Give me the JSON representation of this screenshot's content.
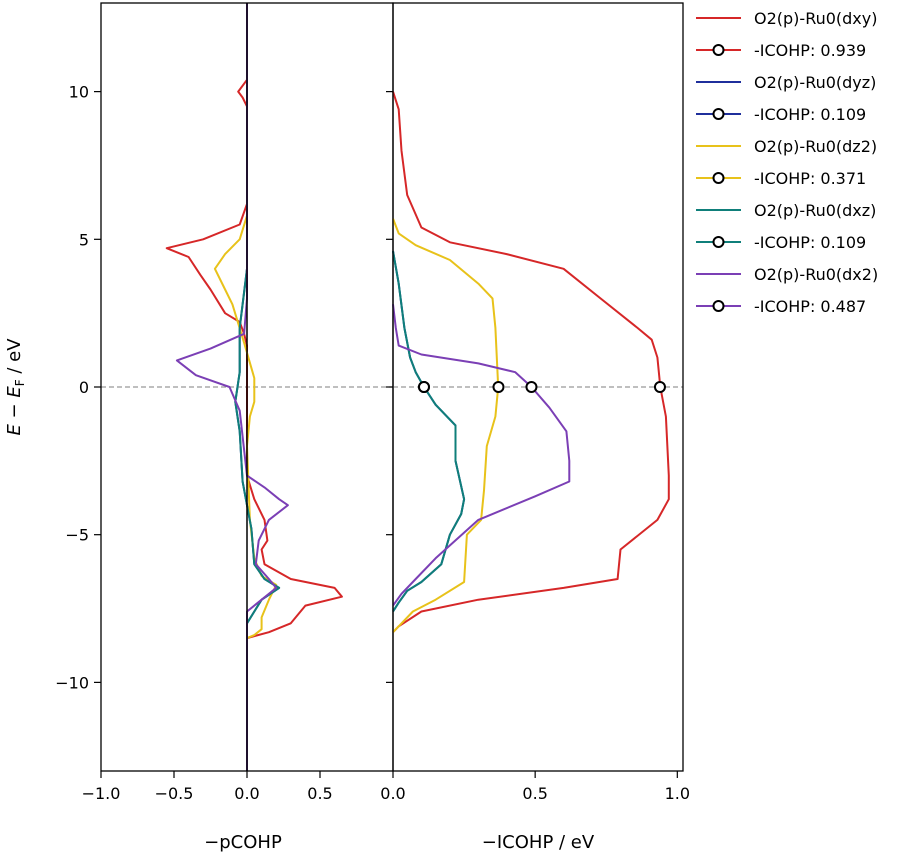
{
  "chart_data": [
    {
      "type": "line",
      "panel": "pCOHP",
      "xlabel": "−pCOHP",
      "ylabel": "E − E_F / eV",
      "ylabel_parts": {
        "e": "E",
        "minus": " − ",
        "ef": "E",
        "sub": "F",
        "unit": " / eV"
      },
      "xlim": [
        -1.0,
        1.0
      ],
      "ylim": [
        -13,
        13
      ],
      "x_ticks": [
        -1.0,
        -0.5,
        0.0,
        0.5
      ],
      "x_tick_labels": [
        "−1.0",
        "−0.5",
        "0.0",
        "0.5"
      ],
      "y_ticks": [
        10,
        5,
        0,
        -5,
        -10
      ],
      "y_tick_labels": [
        "10",
        "5",
        "0",
        "−5",
        "−10"
      ],
      "fermi_level": 0,
      "series": [
        {
          "name": "O2(p)-Ru0(dxy)",
          "color": "#d62728",
          "points": [
            [
              0,
              13
            ],
            [
              0,
              10.4
            ],
            [
              -0.06,
              10
            ],
            [
              -0.03,
              9.8
            ],
            [
              0,
              9.5
            ],
            [
              0,
              7
            ],
            [
              0,
              6.2
            ],
            [
              -0.05,
              5.5
            ],
            [
              -0.3,
              5.0
            ],
            [
              -0.55,
              4.7
            ],
            [
              -0.4,
              4.4
            ],
            [
              -0.32,
              3.8
            ],
            [
              -0.25,
              3.3
            ],
            [
              -0.15,
              2.5
            ],
            [
              -0.05,
              2.2
            ],
            [
              -0.02,
              1.8
            ],
            [
              0,
              1.4
            ],
            [
              0,
              -3
            ],
            [
              0.05,
              -3.8
            ],
            [
              0.12,
              -4.5
            ],
            [
              0.14,
              -5.2
            ],
            [
              0.1,
              -5.5
            ],
            [
              0.12,
              -6.0
            ],
            [
              0.3,
              -6.5
            ],
            [
              0.6,
              -6.8
            ],
            [
              0.65,
              -7.1
            ],
            [
              0.4,
              -7.4
            ],
            [
              0.3,
              -8.0
            ],
            [
              0.15,
              -8.3
            ],
            [
              0,
              -8.5
            ],
            [
              0,
              -13
            ]
          ]
        },
        {
          "name": "O2(p)-Ru0(dyz)",
          "color": "#1f2f9c",
          "points": [
            [
              0,
              13
            ],
            [
              0,
              4
            ],
            [
              -0.05,
              2
            ],
            [
              -0.05,
              0.5
            ],
            [
              -0.08,
              -0.5
            ],
            [
              -0.05,
              -1.5
            ],
            [
              -0.03,
              -3.2
            ],
            [
              0.03,
              -4.8
            ],
            [
              0.05,
              -6
            ],
            [
              0.12,
              -6.5
            ],
            [
              0.22,
              -6.8
            ],
            [
              0.1,
              -7.2
            ],
            [
              0.05,
              -7.6
            ],
            [
              0,
              -8
            ],
            [
              0,
              -13
            ]
          ]
        },
        {
          "name": "O2(p)-Ru0(dz2)",
          "color": "#e8c21a",
          "points": [
            [
              0,
              13
            ],
            [
              0,
              5.8
            ],
            [
              -0.05,
              5
            ],
            [
              -0.15,
              4.5
            ],
            [
              -0.22,
              4.0
            ],
            [
              -0.15,
              3.3
            ],
            [
              -0.1,
              2.8
            ],
            [
              -0.02,
              1.5
            ],
            [
              0.05,
              0.3
            ],
            [
              0.05,
              -0.5
            ],
            [
              0.02,
              -1
            ],
            [
              0,
              -2
            ],
            [
              0.02,
              -4.5
            ],
            [
              0.05,
              -5.8
            ],
            [
              0.1,
              -6.4
            ],
            [
              0.2,
              -6.7
            ],
            [
              0.15,
              -7.2
            ],
            [
              0.1,
              -7.8
            ],
            [
              0.1,
              -8.2
            ],
            [
              0.05,
              -8.4
            ],
            [
              0,
              -8.5
            ],
            [
              0,
              -13
            ]
          ]
        },
        {
          "name": "O2(p)-Ru0(dxz)",
          "color": "#0f7f7a",
          "points": [
            [
              0,
              13
            ],
            [
              0,
              4
            ],
            [
              -0.05,
              2
            ],
            [
              -0.05,
              0.5
            ],
            [
              -0.08,
              -0.5
            ],
            [
              -0.05,
              -1.5
            ],
            [
              -0.03,
              -3.2
            ],
            [
              0.03,
              -4.8
            ],
            [
              0.05,
              -6
            ],
            [
              0.12,
              -6.5
            ],
            [
              0.22,
              -6.8
            ],
            [
              0.1,
              -7.2
            ],
            [
              0.05,
              -7.6
            ],
            [
              0,
              -8
            ],
            [
              0,
              -13
            ]
          ]
        },
        {
          "name": "O2(p)-Ru0(dx2)",
          "color": "#7b3fb5",
          "points": [
            [
              0,
              13
            ],
            [
              0,
              3
            ],
            [
              -0.02,
              1.8
            ],
            [
              -0.25,
              1.3
            ],
            [
              -0.48,
              0.9
            ],
            [
              -0.35,
              0.4
            ],
            [
              -0.12,
              0
            ],
            [
              -0.05,
              -0.8
            ],
            [
              0,
              -3
            ],
            [
              0.12,
              -3.4
            ],
            [
              0.22,
              -3.8
            ],
            [
              0.28,
              -4.0
            ],
            [
              0.15,
              -4.5
            ],
            [
              0.08,
              -5.2
            ],
            [
              0.06,
              -6
            ],
            [
              0.15,
              -6.5
            ],
            [
              0.2,
              -6.8
            ],
            [
              0.1,
              -7.2
            ],
            [
              0,
              -7.6
            ],
            [
              0,
              -13
            ]
          ]
        }
      ]
    },
    {
      "type": "line",
      "panel": "ICOHP",
      "xlabel": "−ICOHP / eV",
      "xlim": [
        0.0,
        1.02
      ],
      "ylim": [
        -13,
        13
      ],
      "x_ticks": [
        0.0,
        0.5,
        1.0
      ],
      "x_tick_labels": [
        "0.0",
        "0.5",
        "1.0"
      ],
      "fermi_level": 0,
      "series": [
        {
          "name": "O2(p)-Ru0(dxy)",
          "color": "#d62728",
          "points": [
            [
              0,
              10
            ],
            [
              0.02,
              9.4
            ],
            [
              0.03,
              8
            ],
            [
              0.05,
              6.5
            ],
            [
              0.1,
              5.4
            ],
            [
              0.2,
              4.9
            ],
            [
              0.4,
              4.5
            ],
            [
              0.6,
              4.0
            ],
            [
              0.73,
              3.0
            ],
            [
              0.86,
              2.0
            ],
            [
              0.91,
              1.6
            ],
            [
              0.93,
              1.0
            ],
            [
              0.94,
              0
            ],
            [
              0.96,
              -1
            ],
            [
              0.97,
              -3
            ],
            [
              0.97,
              -3.8
            ],
            [
              0.93,
              -4.5
            ],
            [
              0.8,
              -5.5
            ],
            [
              0.79,
              -6.5
            ],
            [
              0.6,
              -6.8
            ],
            [
              0.3,
              -7.2
            ],
            [
              0.1,
              -7.6
            ],
            [
              0.02,
              -8.1
            ],
            [
              0,
              -8.3
            ]
          ],
          "icohp": 0.939,
          "icohp_label": "-ICOHP: 0.939"
        },
        {
          "name": "O2(p)-Ru0(dyz)",
          "color": "#1f2f9c",
          "points": [
            [
              0,
              4.6
            ],
            [
              0.02,
              3.5
            ],
            [
              0.04,
              2.0
            ],
            [
              0.06,
              1.0
            ],
            [
              0.08,
              0.5
            ],
            [
              0.109,
              0
            ],
            [
              0.15,
              -0.6
            ],
            [
              0.22,
              -1.3
            ],
            [
              0.22,
              -2.5
            ],
            [
              0.25,
              -3.8
            ],
            [
              0.24,
              -4.3
            ],
            [
              0.2,
              -5.0
            ],
            [
              0.17,
              -6.0
            ],
            [
              0.1,
              -6.6
            ],
            [
              0.05,
              -6.9
            ],
            [
              0.02,
              -7.3
            ],
            [
              0,
              -7.6
            ]
          ],
          "icohp": 0.109,
          "icohp_label": "-ICOHP: 0.109"
        },
        {
          "name": "O2(p)-Ru0(dz2)",
          "color": "#e8c21a",
          "points": [
            [
              0,
              5.7
            ],
            [
              0.02,
              5.2
            ],
            [
              0.08,
              4.8
            ],
            [
              0.2,
              4.3
            ],
            [
              0.3,
              3.5
            ],
            [
              0.35,
              3.0
            ],
            [
              0.36,
              2.0
            ],
            [
              0.37,
              0
            ],
            [
              0.36,
              -1
            ],
            [
              0.33,
              -2
            ],
            [
              0.32,
              -3.5
            ],
            [
              0.31,
              -4.5
            ],
            [
              0.26,
              -5.0
            ],
            [
              0.25,
              -6.6
            ],
            [
              0.15,
              -7.2
            ],
            [
              0.07,
              -7.6
            ],
            [
              0.02,
              -8.1
            ],
            [
              0,
              -8.3
            ]
          ],
          "icohp": 0.371,
          "icohp_label": "-ICOHP: 0.371"
        },
        {
          "name": "O2(p)-Ru0(dxz)",
          "color": "#0f7f7a",
          "points": [
            [
              0,
              4.6
            ],
            [
              0.02,
              3.5
            ],
            [
              0.04,
              2.0
            ],
            [
              0.06,
              1.0
            ],
            [
              0.08,
              0.5
            ],
            [
              0.109,
              0
            ],
            [
              0.15,
              -0.6
            ],
            [
              0.22,
              -1.3
            ],
            [
              0.22,
              -2.5
            ],
            [
              0.25,
              -3.8
            ],
            [
              0.24,
              -4.3
            ],
            [
              0.2,
              -5.0
            ],
            [
              0.17,
              -6.0
            ],
            [
              0.1,
              -6.6
            ],
            [
              0.05,
              -6.9
            ],
            [
              0.02,
              -7.3
            ],
            [
              0,
              -7.6
            ]
          ],
          "icohp": 0.109,
          "icohp_label": "-ICOHP: 0.109"
        },
        {
          "name": "O2(p)-Ru0(dx2)",
          "color": "#7b3fb5",
          "points": [
            [
              0,
              2.8
            ],
            [
              0.01,
              2.0
            ],
            [
              0.02,
              1.4
            ],
            [
              0.1,
              1.1
            ],
            [
              0.3,
              0.8
            ],
            [
              0.43,
              0.5
            ],
            [
              0.487,
              0
            ],
            [
              0.55,
              -0.7
            ],
            [
              0.61,
              -1.5
            ],
            [
              0.62,
              -2.5
            ],
            [
              0.62,
              -3.2
            ],
            [
              0.5,
              -3.7
            ],
            [
              0.3,
              -4.5
            ],
            [
              0.15,
              -5.8
            ],
            [
              0.08,
              -6.5
            ],
            [
              0.03,
              -7.0
            ],
            [
              0,
              -7.4
            ]
          ],
          "icohp": 0.487,
          "icohp_label": "-ICOHP: 0.487"
        }
      ]
    }
  ],
  "legend": {
    "placement": "right",
    "entries": [
      {
        "label": "O2(p)-Ru0(dxy)",
        "color": "#d62728",
        "marker": false
      },
      {
        "label": "-ICOHP: 0.939",
        "color": "#d62728",
        "marker": true
      },
      {
        "label": "O2(p)-Ru0(dyz)",
        "color": "#1f2f9c",
        "marker": false
      },
      {
        "label": "-ICOHP: 0.109",
        "color": "#1f2f9c",
        "marker": true
      },
      {
        "label": "O2(p)-Ru0(dz2)",
        "color": "#e8c21a",
        "marker": false
      },
      {
        "label": "-ICOHP: 0.371",
        "color": "#e8c21a",
        "marker": true
      },
      {
        "label": "O2(p)-Ru0(dxz)",
        "color": "#0f7f7a",
        "marker": false
      },
      {
        "label": "-ICOHP: 0.109",
        "color": "#0f7f7a",
        "marker": true
      },
      {
        "label": "O2(p)-Ru0(dx2)",
        "color": "#7b3fb5",
        "marker": false
      },
      {
        "label": "-ICOHP: 0.487",
        "color": "#7b3fb5",
        "marker": true
      }
    ]
  }
}
